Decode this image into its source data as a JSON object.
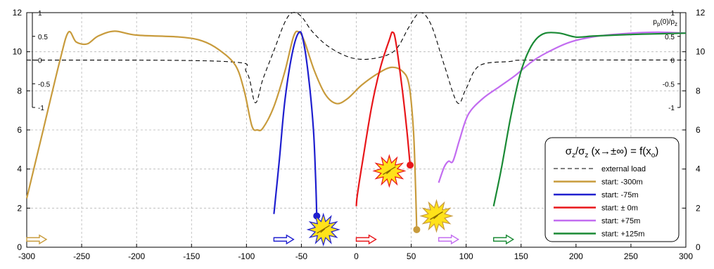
{
  "chart_data": {
    "type": "line",
    "title": "σz/σz (x→±∞) = f(xo)",
    "xlabel": "",
    "ylabel": "",
    "xlim": [
      -300,
      300
    ],
    "ylim": [
      0,
      12
    ],
    "x_ticks": [
      "-300",
      "-250",
      "-200",
      "-150",
      "-100",
      "-50",
      "0",
      "50",
      "100",
      "150",
      "200",
      "250",
      "300"
    ],
    "y_ticks": [
      "0",
      "2",
      "4",
      "6",
      "8",
      "10",
      "12"
    ],
    "inset_axis": {
      "label": "pp(0)/pz",
      "ylim": [
        -1,
        1
      ],
      "ticks": [
        "-1",
        "-0.5",
        "0",
        "0.5",
        "1"
      ]
    },
    "grid": true,
    "legend_position": "right",
    "series": [
      {
        "name": "external load",
        "color": "#000000",
        "dash": true,
        "axis": "inset",
        "points": [
          [
            -300,
            0
          ],
          [
            -120,
            -0.03
          ],
          [
            -100,
            -0.25
          ],
          [
            -92,
            -0.9
          ],
          [
            -85,
            -0.4
          ],
          [
            -75,
            0.2
          ],
          [
            -65,
            0.8
          ],
          [
            -58,
            1.0
          ],
          [
            -50,
            0.92
          ],
          [
            -40,
            0.6
          ],
          [
            -25,
            0.28
          ],
          [
            -5,
            0.05
          ],
          [
            15,
            0.03
          ],
          [
            35,
            0.2
          ],
          [
            48,
            0.7
          ],
          [
            58,
            1.0
          ],
          [
            68,
            0.75
          ],
          [
            80,
            -0.1
          ],
          [
            92,
            -0.9
          ],
          [
            100,
            -0.6
          ],
          [
            112,
            -0.12
          ],
          [
            140,
            -0.03
          ],
          [
            160,
            0
          ],
          [
            300,
            0
          ]
        ]
      },
      {
        "name": "start: -300m",
        "color": "#C89B3C",
        "axis": "main",
        "points": [
          [
            -300,
            2.5
          ],
          [
            -285,
            6
          ],
          [
            -270,
            9.5
          ],
          [
            -262,
            11
          ],
          [
            -255,
            10.5
          ],
          [
            -245,
            10.4
          ],
          [
            -235,
            10.8
          ],
          [
            -220,
            11.05
          ],
          [
            -200,
            10.85
          ],
          [
            -160,
            10.75
          ],
          [
            -140,
            10.55
          ],
          [
            -125,
            10.1
          ],
          [
            -110,
            9.3
          ],
          [
            -102,
            8.0
          ],
          [
            -95,
            6.2
          ],
          [
            -90,
            6.0
          ],
          [
            -85,
            6.1
          ],
          [
            -75,
            7.2
          ],
          [
            -65,
            9.0
          ],
          [
            -57,
            10.8
          ],
          [
            -52,
            11.0
          ],
          [
            -47,
            10.5
          ],
          [
            -38,
            9.0
          ],
          [
            -28,
            7.8
          ],
          [
            -18,
            7.35
          ],
          [
            -8,
            7.6
          ],
          [
            5,
            8.3
          ],
          [
            20,
            8.9
          ],
          [
            32,
            9.2
          ],
          [
            42,
            9.0
          ],
          [
            48,
            8.3
          ],
          [
            52,
            6.0
          ],
          [
            54,
            3.0
          ],
          [
            55,
            0.9
          ]
        ]
      },
      {
        "name": "start: -75m",
        "color": "#1f1fcf",
        "axis": "main",
        "points": [
          [
            -75,
            1.7
          ],
          [
            -70,
            4.5
          ],
          [
            -65,
            7.5
          ],
          [
            -58,
            10.0
          ],
          [
            -52,
            11.0
          ],
          [
            -48,
            10.5
          ],
          [
            -43,
            8.5
          ],
          [
            -39,
            6.0
          ],
          [
            -37,
            3.5
          ],
          [
            -36,
            1.6
          ]
        ]
      },
      {
        "name": "start: ± 0m",
        "color": "#e8161a",
        "axis": "main",
        "points": [
          [
            0,
            2.1
          ],
          [
            1,
            2.7
          ],
          [
            6,
            4.5
          ],
          [
            14,
            7.2
          ],
          [
            22,
            9.2
          ],
          [
            30,
            10.6
          ],
          [
            33,
            11.0
          ],
          [
            36,
            10.5
          ],
          [
            42,
            8.0
          ],
          [
            46,
            6.0
          ],
          [
            49,
            4.2
          ]
        ]
      },
      {
        "name": "start: +75m",
        "color": "#c26cf0",
        "axis": "main",
        "points": [
          [
            75,
            3.3
          ],
          [
            80,
            4.1
          ],
          [
            84,
            4.4
          ],
          [
            88,
            4.4
          ],
          [
            94,
            5.5
          ],
          [
            102,
            6.8
          ],
          [
            115,
            7.6
          ],
          [
            130,
            8.2
          ],
          [
            145,
            8.8
          ],
          [
            160,
            9.5
          ],
          [
            175,
            10.0
          ],
          [
            195,
            10.5
          ],
          [
            220,
            10.8
          ],
          [
            250,
            10.95
          ],
          [
            275,
            11.0
          ],
          [
            300,
            10.95
          ]
        ]
      },
      {
        "name": "start: +125m",
        "color": "#1a8a35",
        "axis": "main",
        "points": [
          [
            125,
            2.1
          ],
          [
            132,
            4.0
          ],
          [
            140,
            6.5
          ],
          [
            148,
            8.6
          ],
          [
            155,
            9.8
          ],
          [
            163,
            10.6
          ],
          [
            172,
            10.95
          ],
          [
            185,
            10.95
          ],
          [
            200,
            10.75
          ],
          [
            215,
            10.8
          ],
          [
            235,
            10.85
          ],
          [
            260,
            10.9
          ],
          [
            300,
            10.95
          ]
        ]
      }
    ],
    "end_markers": [
      {
        "series": "start: -75m",
        "x": -36,
        "y": 1.6
      },
      {
        "series": "start: ± 0m",
        "x": 49,
        "y": 4.2
      },
      {
        "series": "start: -300m",
        "x": 55,
        "y": 0.9
      }
    ],
    "start_arrows": [
      {
        "series": "start: -300m",
        "x": -300
      },
      {
        "series": "start: -75m",
        "x": -75
      },
      {
        "series": "start: ± 0m",
        "x": 0
      },
      {
        "series": "start: +75m",
        "x": 75
      },
      {
        "series": "start: +125m",
        "x": 125
      }
    ],
    "burst_icons": [
      {
        "x": -30,
        "y": 0.9,
        "stroke": "#1f1fcf"
      },
      {
        "x": 30,
        "y": 3.9,
        "stroke": "#e8161a"
      },
      {
        "x": 73,
        "y": 1.6,
        "stroke": "#C89B3C"
      }
    ]
  }
}
